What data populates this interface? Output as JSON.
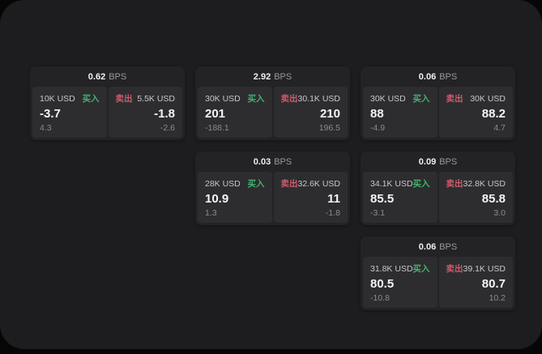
{
  "app": {
    "buy_label": "买入",
    "sell_label": "卖出",
    "unit_label": "BPS"
  },
  "colors": {
    "background": "#060607",
    "panel": "#1d1d1f",
    "card": "#232325",
    "tile": "#2d2d2f",
    "buy_green": "#42b26f",
    "sell_red": "#cf5a6e",
    "value_white": "#f5f5f6",
    "label_gray": "#c7c7c9",
    "muted_gray": "#8b8b8d"
  },
  "cards": [
    {
      "bps": "0.62",
      "unit": "BPS",
      "buy": {
        "size": "10K USD",
        "label": "买入",
        "value": "-3.7",
        "sub": "4.3"
      },
      "sell": {
        "label": "卖出",
        "size": "5.5K USD",
        "value": "-1.8",
        "sub": "-2.6"
      }
    },
    {
      "bps": "2.92",
      "unit": "BPS",
      "buy": {
        "size": "30K USD",
        "label": "买入",
        "value": "201",
        "sub": "-188.1"
      },
      "sell": {
        "label": "卖出",
        "size": "30.1K USD",
        "value": "210",
        "sub": "196.5"
      }
    },
    {
      "bps": "0.06",
      "unit": "BPS",
      "buy": {
        "size": "30K USD",
        "label": "买入",
        "value": "88",
        "sub": "-4.9"
      },
      "sell": {
        "label": "卖出",
        "size": "30K USD",
        "value": "88.2",
        "sub": "4.7"
      }
    },
    {
      "bps": "0.03",
      "unit": "BPS",
      "buy": {
        "size": "28K USD",
        "label": "买入",
        "value": "10.9",
        "sub": "1.3"
      },
      "sell": {
        "label": "卖出",
        "size": "32.6K USD",
        "value": "11",
        "sub": "-1.8"
      }
    },
    {
      "bps": "0.09",
      "unit": "BPS",
      "buy": {
        "size": "34.1K USD",
        "label": "买入",
        "value": "85.5",
        "sub": "-3.1"
      },
      "sell": {
        "label": "卖出",
        "size": "32.8K USD",
        "value": "85.8",
        "sub": "3.0"
      }
    },
    {
      "bps": "0.06",
      "unit": "BPS",
      "buy": {
        "size": "31.8K USD",
        "label": "买入",
        "value": "80.5",
        "sub": "-10.8"
      },
      "sell": {
        "label": "卖出",
        "size": "39.1K USD",
        "value": "80.7",
        "sub": "10.2"
      }
    }
  ]
}
